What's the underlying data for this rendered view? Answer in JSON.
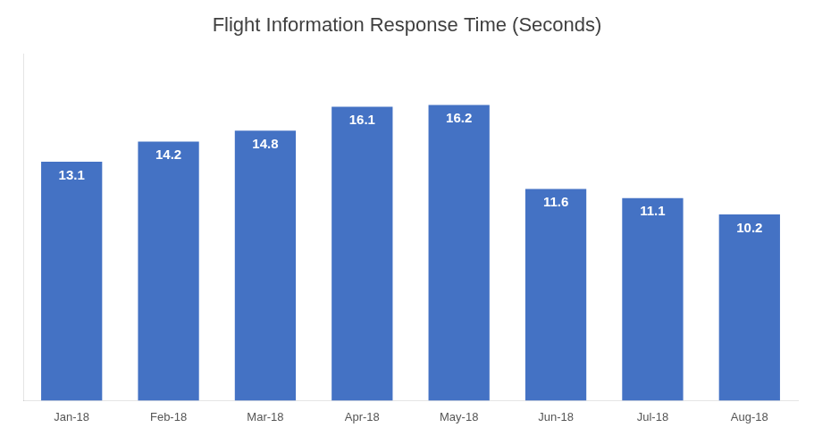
{
  "chart_data": {
    "type": "bar",
    "title": "Flight Information Response Time (Seconds)",
    "categories": [
      "Jan-18",
      "Feb-18",
      "Mar-18",
      "Apr-18",
      "May-18",
      "Jun-18",
      "Jul-18",
      "Aug-18"
    ],
    "values": [
      13.1,
      14.2,
      14.8,
      16.1,
      16.2,
      11.6,
      11.1,
      10.2
    ],
    "color": "#4472C4",
    "ylim": [
      0,
      19
    ],
    "grid": false,
    "legend": null,
    "data_labels": true,
    "tick_labels": "x"
  }
}
